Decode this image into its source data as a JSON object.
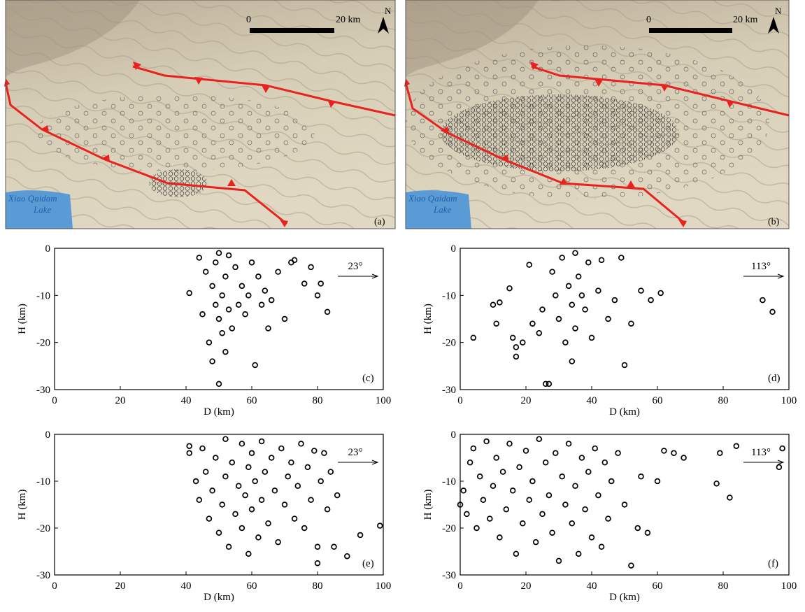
{
  "maps": [
    {
      "scale_zero": "0",
      "scale_label": "20 km",
      "north": "N",
      "lake": [
        "Xiao Qaidam",
        "Lake"
      ],
      "panel": "(a)"
    },
    {
      "scale_zero": "0",
      "scale_label": "20 km",
      "north": "N",
      "lake": [
        "Xiao Qaidam",
        "Lake"
      ],
      "panel": "(b)"
    }
  ],
  "chart_data": [
    {
      "type": "scatter",
      "xlabel": "D (km)",
      "ylabel": "H (km)",
      "annotation": "23°",
      "panel": "(c)",
      "color": "#000000",
      "xlim": [
        0,
        100
      ],
      "ylim": [
        -30,
        0
      ],
      "xticks": [
        0,
        20,
        40,
        60,
        80,
        100
      ],
      "yticks": [
        0,
        -10,
        -20,
        -30
      ],
      "x": [
        41,
        44,
        45,
        46,
        47,
        48,
        48,
        49,
        49,
        50,
        50,
        50,
        51,
        51,
        52,
        52,
        53,
        53,
        54,
        55,
        56,
        57,
        58,
        59,
        60,
        61,
        62,
        63,
        64,
        65,
        66,
        68,
        70,
        72,
        73,
        76,
        78,
        80,
        81,
        83
      ],
      "y": [
        -9.5,
        -2,
        -14,
        -5,
        -20,
        -8,
        -24,
        -12,
        -3,
        -1,
        -15,
        -28.8,
        -10,
        -18,
        -6,
        -22,
        -13,
        -1.5,
        -17,
        -4,
        -12,
        -8,
        -14,
        -10,
        -3,
        -24.8,
        -6,
        -12,
        -9,
        -17,
        -11,
        -5,
        -15,
        -3,
        -2.5,
        -7.5,
        -4,
        -10,
        -7.5,
        -13.5
      ]
    },
    {
      "type": "scatter",
      "xlabel": "D (km)",
      "ylabel": "H (km)",
      "annotation": "113°",
      "panel": "(d)",
      "color": "#000000",
      "xlim": [
        0,
        100
      ],
      "ylim": [
        -30,
        0
      ],
      "xticks": [
        0,
        20,
        40,
        60,
        80,
        100
      ],
      "yticks": [
        0,
        -10,
        -20,
        -30
      ],
      "x": [
        4,
        10,
        11,
        12,
        15,
        16,
        17,
        17,
        19,
        21,
        22,
        24,
        25,
        26,
        27,
        28,
        29,
        30,
        31,
        32,
        33,
        34,
        34,
        35,
        35,
        36,
        37,
        38,
        39,
        40,
        42,
        43,
        45,
        47,
        49,
        50,
        52,
        55,
        58,
        61,
        92,
        95
      ],
      "y": [
        -19,
        -12,
        -16,
        -11.5,
        -8.5,
        -19,
        -21,
        -23,
        -20,
        -3.5,
        -16,
        -18,
        -13,
        -28.8,
        -28.8,
        -5,
        -10,
        -15,
        -2,
        -20,
        -8,
        -12,
        -24,
        -1,
        -17,
        -6,
        -10,
        -13,
        -3,
        -19,
        -9,
        -2.5,
        -15,
        -11,
        -2,
        -24.8,
        -16,
        -9,
        -11,
        -9.5,
        -11,
        -13.5
      ]
    },
    {
      "type": "scatter",
      "xlabel": "D (km)",
      "ylabel": "H (km)",
      "annotation": "23°",
      "panel": "(e)",
      "color": "#000000",
      "xlim": [
        0,
        100
      ],
      "ylim": [
        -30,
        0
      ],
      "xticks": [
        0,
        20,
        40,
        60,
        80,
        100
      ],
      "yticks": [
        0,
        -10,
        -20,
        -30
      ],
      "x": [
        41,
        41,
        43,
        44,
        45,
        46,
        47,
        48,
        49,
        50,
        51,
        52,
        52,
        53,
        54,
        55,
        56,
        57,
        57,
        58,
        59,
        59,
        60,
        60,
        61,
        62,
        63,
        63,
        64,
        65,
        66,
        67,
        68,
        69,
        70,
        71,
        72,
        73,
        74,
        75,
        76,
        77,
        78,
        79,
        80,
        80,
        81,
        82,
        83,
        84,
        85,
        86,
        89,
        93,
        99
      ],
      "y": [
        -2.5,
        -4,
        -10,
        -14,
        -3,
        -8,
        -18,
        -12,
        -5,
        -21,
        -15,
        -1,
        -9,
        -24,
        -6,
        -17,
        -11,
        -2,
        -20,
        -13,
        -7,
        -25.5,
        -4,
        -16,
        -10,
        -22,
        -1.5,
        -14,
        -8,
        -19,
        -5,
        -12,
        -23,
        -3,
        -15,
        -9,
        -6,
        -18,
        -11,
        -2,
        -20,
        -7,
        -14,
        -3.5,
        -24,
        -27.5,
        -10,
        -4,
        -16,
        -8,
        -24,
        -13,
        -26,
        -21.5,
        -19.5
      ]
    },
    {
      "type": "scatter",
      "xlabel": "D (km)",
      "ylabel": "H (km)",
      "annotation": "113°",
      "panel": "(f)",
      "color": "#000000",
      "xlim": [
        0,
        100
      ],
      "ylim": [
        -30,
        0
      ],
      "xticks": [
        0,
        20,
        40,
        60,
        80,
        100
      ],
      "yticks": [
        0,
        -10,
        -20,
        -30
      ],
      "x": [
        0,
        1,
        2,
        3,
        4,
        5,
        6,
        7,
        8,
        9,
        10,
        11,
        12,
        13,
        14,
        15,
        16,
        17,
        18,
        19,
        20,
        21,
        22,
        23,
        24,
        25,
        26,
        27,
        28,
        29,
        30,
        31,
        32,
        33,
        34,
        35,
        36,
        37,
        38,
        39,
        40,
        41,
        42,
        43,
        44,
        45,
        46,
        48,
        50,
        52,
        54,
        55,
        57,
        60,
        62,
        65,
        68,
        78,
        79,
        82,
        84,
        97,
        98
      ],
      "y": [
        -15,
        -12,
        -17,
        -6,
        -3,
        -20,
        -9,
        -14,
        -1.5,
        -18,
        -11,
        -5,
        -22,
        -8,
        -16,
        -2,
        -12,
        -25.5,
        -7,
        -19,
        -3.5,
        -14,
        -10,
        -23,
        -1,
        -17,
        -6,
        -13,
        -21,
        -4,
        -27,
        -9,
        -15,
        -2,
        -19,
        -11,
        -25.5,
        -5,
        -16,
        -8,
        -22,
        -3,
        -13,
        -24,
        -6,
        -18,
        -10,
        -4,
        -15,
        -28,
        -20,
        -9,
        -21,
        -10,
        -3.5,
        -4,
        -5,
        -10.5,
        -4,
        -13.5,
        -2.5,
        -7,
        -3
      ]
    }
  ]
}
